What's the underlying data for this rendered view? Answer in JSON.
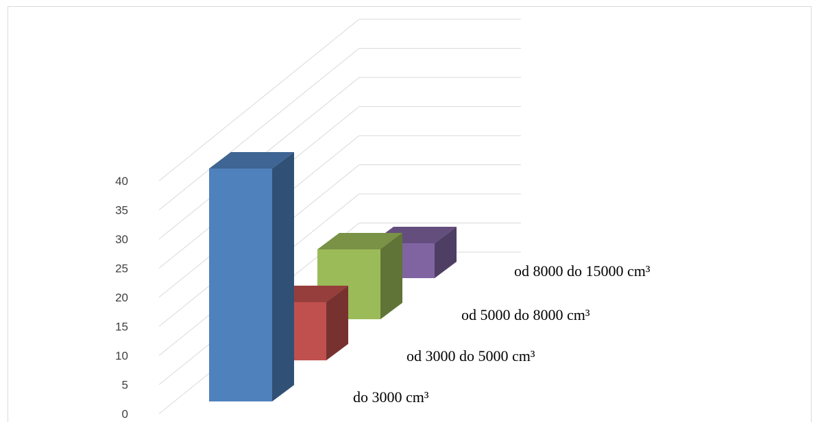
{
  "chart_data": {
    "type": "bar",
    "subtype": "3d-column-depth",
    "title": "",
    "xlabel": "",
    "ylabel": "",
    "ylim": [
      0,
      40
    ],
    "yticks": [
      "0",
      "5",
      "10",
      "15",
      "20",
      "25",
      "30",
      "35",
      "40"
    ],
    "grid": true,
    "legend": "none",
    "categories": [
      "do 3000 cm³",
      "od 3000 do 5000 cm³",
      "od 5000 do 8000 cm³",
      "od 8000 do 15000 cm³"
    ],
    "values": [
      40,
      10,
      12,
      6
    ],
    "colors": [
      "#4f81bd",
      "#c0504d",
      "#9bbb59",
      "#8064a2"
    ]
  }
}
